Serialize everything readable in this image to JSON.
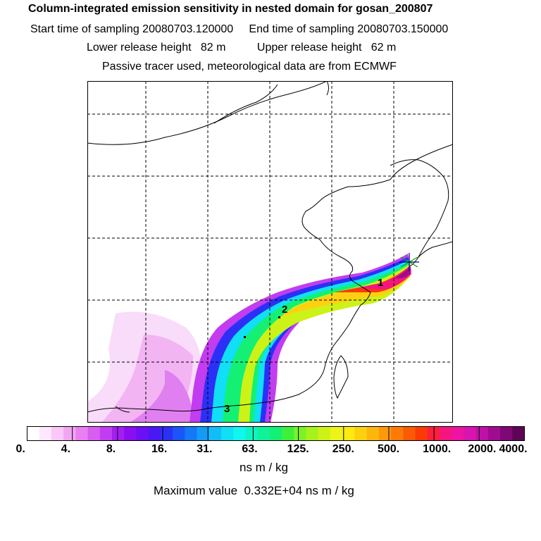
{
  "title": {
    "line1": "Column-integrated emission sensitivity in nested domain for gosan_200807",
    "line2": "Start time of sampling 20080703.120000     End time of sampling 20080703.150000",
    "line3": "Lower release height   82 m          Upper release height   62 m",
    "line4": "Passive tracer used, meteorological data are from ECMWF"
  },
  "map": {
    "markers": [
      {
        "label": "1"
      },
      {
        "label": "2"
      },
      {
        "label": "3"
      }
    ],
    "release_site": "star-marker"
  },
  "colorbar": {
    "tick_labels": [
      "0.",
      "4.",
      "8.",
      "16.",
      "31.",
      "63.",
      "125.",
      "250.",
      "500.",
      "1000.",
      "2000.",
      "4000."
    ],
    "colors": [
      "#ffffff",
      "#fde8fd",
      "#f8c8f8",
      "#f2a6f2",
      "#e97ff0",
      "#d85ef0",
      "#c23df0",
      "#a41ef0",
      "#8a0ef0",
      "#6b10f4",
      "#4a18f4",
      "#2c30f6",
      "#1b55f7",
      "#1478f7",
      "#139cf7",
      "#12bdf7",
      "#10dff6",
      "#0ff7ee",
      "#0ff3c2",
      "#0ff29b",
      "#14f074",
      "#3ef03c",
      "#7af226",
      "#a8f21c",
      "#cdf218",
      "#eef416",
      "#fcea12",
      "#fdd10f",
      "#fdb60c",
      "#fd990a",
      "#fd7a08",
      "#fb5a06",
      "#fb3a08",
      "#fb1f3c",
      "#f4167e",
      "#ec14a2",
      "#d814b0",
      "#c010a8",
      "#a00c90",
      "#800876",
      "#5e0456"
    ],
    "units": "ns m / kg",
    "max_value_text": "Maximum value  0.332E+04 ns m / kg"
  }
}
